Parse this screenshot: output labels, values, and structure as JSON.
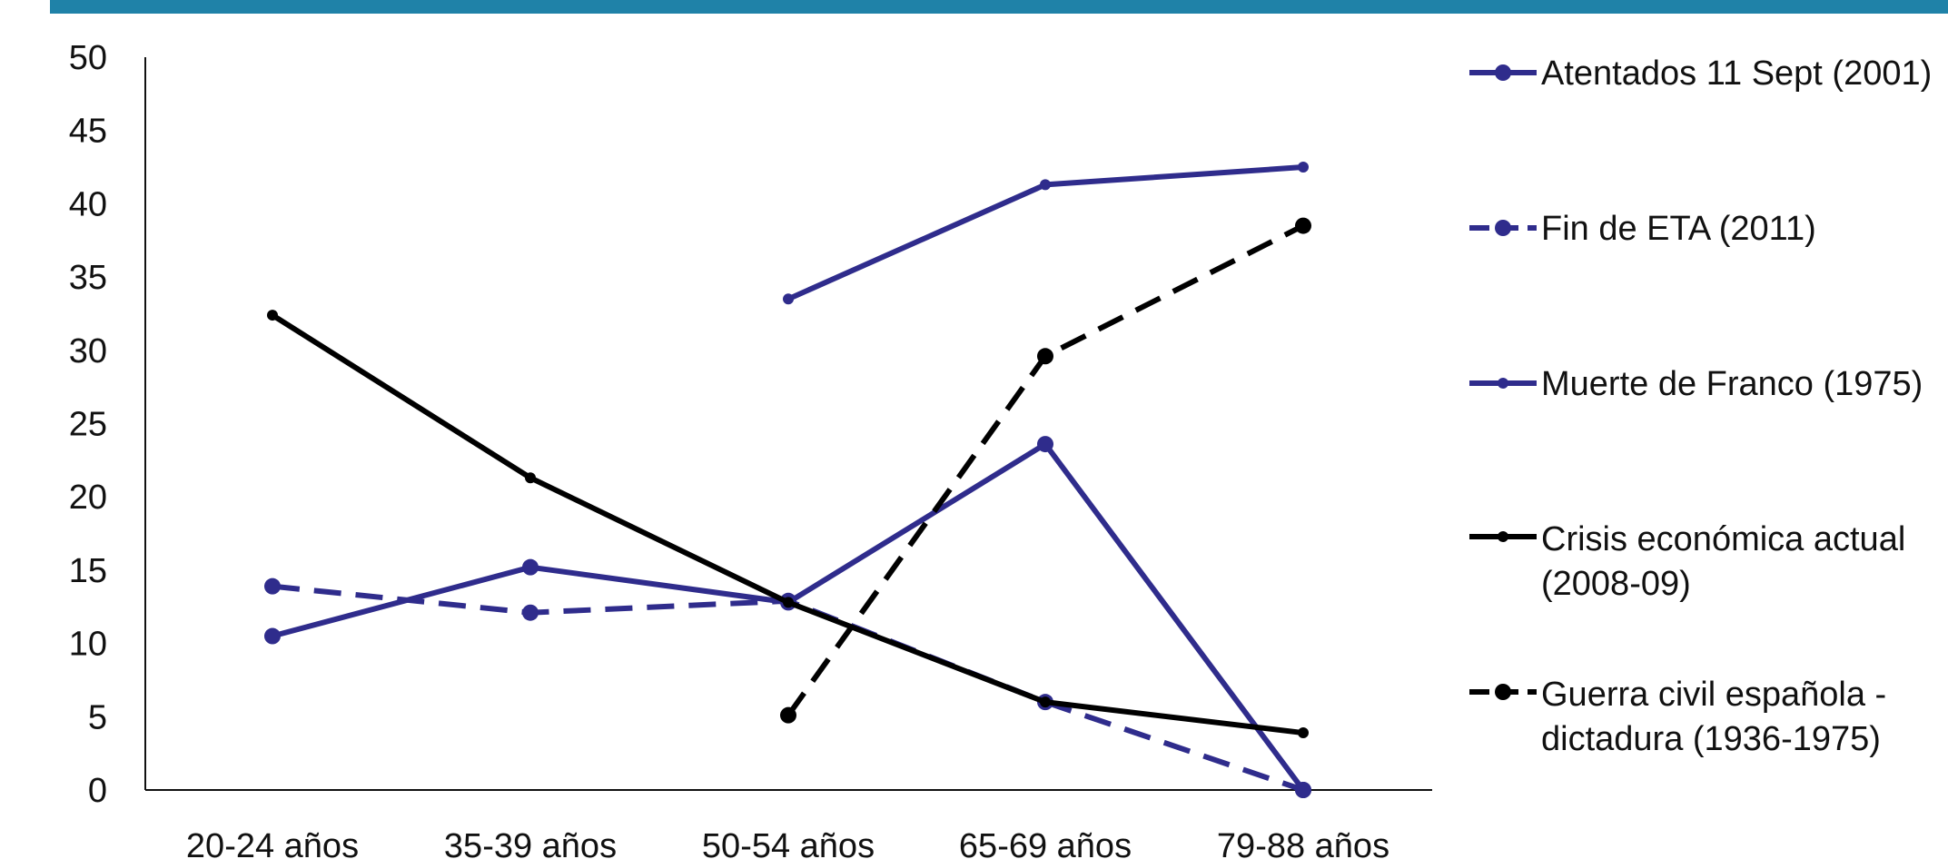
{
  "colors": {
    "navy": "#2f2c8c",
    "black": "#000000",
    "band": "#1f82a8"
  },
  "chart_data": {
    "type": "line",
    "categories": [
      "20-24 años",
      "35-39 años",
      "50-54 años",
      "65-69 años",
      "79-88 años"
    ],
    "ylim": [
      0,
      50
    ],
    "y_ticks": [
      0,
      5,
      10,
      15,
      20,
      25,
      30,
      35,
      40,
      45,
      50
    ],
    "grid": false,
    "legend_position": "right",
    "series": [
      {
        "name": "Atentados 11 Sept (2001)",
        "color": "#2f2c8c",
        "dash": "solid",
        "marker": "large",
        "values": [
          10.5,
          15.2,
          12.8,
          23.6,
          0
        ]
      },
      {
        "name": "Fin de ETA (2011)",
        "color": "#2f2c8c",
        "dash": "dashed",
        "marker": "large",
        "values": [
          13.9,
          12.1,
          12.9,
          6.0,
          0
        ]
      },
      {
        "name": "Muerte de Franco (1975)",
        "color": "#2f2c8c",
        "dash": "solid",
        "marker": "small",
        "values": [
          null,
          null,
          33.5,
          41.3,
          42.5
        ]
      },
      {
        "name": "Crisis económica actual (2008-09)",
        "legend_lines": [
          "Crisis económica actual",
          "(2008-09)"
        ],
        "color": "#000000",
        "dash": "solid",
        "marker": "small",
        "values": [
          32.4,
          21.3,
          12.8,
          6.0,
          3.9
        ]
      },
      {
        "name": "Guerra civil española - dictadura (1936-1975)",
        "legend_lines": [
          "Guerra civil española -",
          "dictadura (1936-1975)"
        ],
        "color": "#000000",
        "dash": "dashed",
        "marker": "large",
        "values": [
          null,
          null,
          5.1,
          29.6,
          38.5
        ]
      }
    ]
  }
}
